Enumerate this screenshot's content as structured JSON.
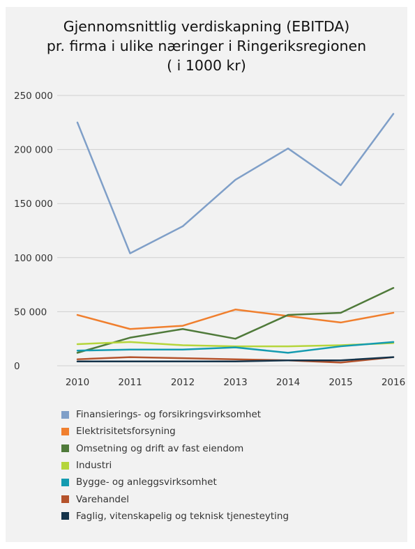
{
  "chart_data": {
    "type": "line",
    "title_lines": [
      "Gjennomsnittlig verdiskapning (EBITDA)",
      "pr. firma i ulike næringer i Ringeriksregionen",
      "( i 1000 kr)"
    ],
    "x": [
      "2010",
      "2011",
      "2012",
      "2013",
      "2014",
      "2015",
      "2016"
    ],
    "ylim": [
      0,
      250000
    ],
    "yticks": [
      0,
      50000,
      100000,
      150000,
      200000,
      250000
    ],
    "ytick_labels": [
      "0",
      "50 000",
      "100 000",
      "150 000",
      "200 000",
      "250 000"
    ],
    "grid": true,
    "legend_position": "bottom",
    "series": [
      {
        "name": "Finansierings- og forsikringsvirksomhet",
        "color": "#7f9fc8",
        "values": [
          225000,
          104000,
          129000,
          172000,
          201000,
          167000,
          233000
        ]
      },
      {
        "name": "Elektrisitetsforsyning",
        "color": "#f07f2e",
        "values": [
          47000,
          34000,
          37000,
          52000,
          46000,
          40000,
          49000
        ]
      },
      {
        "name": "Omsetning og drift av fast eiendom",
        "color": "#4f7a3a",
        "values": [
          12000,
          26000,
          34000,
          25000,
          47000,
          49000,
          72000
        ]
      },
      {
        "name": "Industri",
        "color": "#b5d53b",
        "values": [
          20000,
          22000,
          19000,
          18000,
          18000,
          19000,
          21000
        ]
      },
      {
        "name": "Bygge- og anleggsvirksomhet",
        "color": "#149bb0",
        "values": [
          14000,
          15000,
          15000,
          17000,
          12000,
          18000,
          22000
        ]
      },
      {
        "name": "Varehandel",
        "color": "#b5532c",
        "values": [
          6000,
          8000,
          7000,
          6000,
          5000,
          3000,
          8000
        ]
      },
      {
        "name": "Faglig, vitenskapelig og teknisk tjenesteyting",
        "color": "#14334a",
        "values": [
          4000,
          4000,
          4000,
          4000,
          5000,
          5000,
          8000
        ]
      }
    ]
  }
}
